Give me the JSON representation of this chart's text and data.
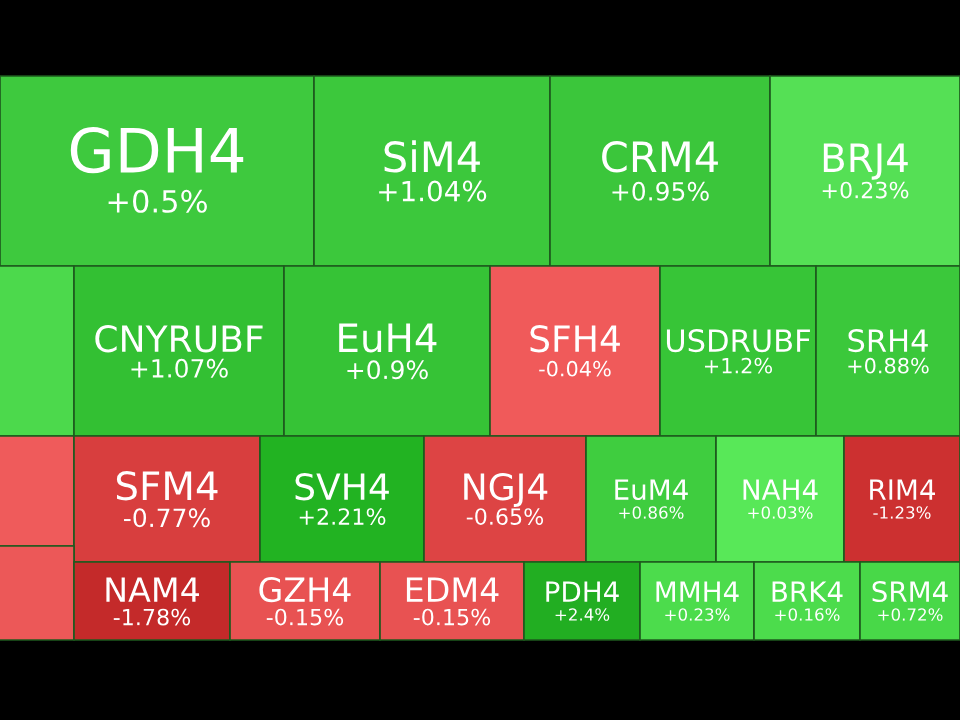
{
  "chart_data": {
    "type": "other",
    "categories": [
      "GDH4",
      "SiM4",
      "CRM4",
      "BRJ4",
      null,
      "CNYRUBF",
      "EuH4",
      "SFH4",
      "USDRUBF",
      "SRH4",
      null,
      "SFM4",
      "SVH4",
      "NGJ4",
      "EuM4",
      "NAH4",
      "RIM4",
      null,
      "NAM4",
      "GZH4",
      "EDM4",
      "PDH4",
      "MMH4",
      "BRK4",
      "SRM4"
    ],
    "values": [
      0.5,
      1.04,
      0.95,
      0.23,
      null,
      1.07,
      0.9,
      -0.04,
      1.2,
      0.88,
      null,
      -0.77,
      2.21,
      -0.65,
      0.86,
      0.03,
      -1.23,
      null,
      -1.78,
      -0.15,
      -0.15,
      2.4,
      0.23,
      0.16,
      0.72
    ],
    "value_labels": [
      "+0.5%",
      "+1.04%",
      "+0.95%",
      "+0.23%",
      null,
      "+1.07%",
      "+0.9%",
      "-0.04%",
      "+1.2%",
      "+0.88%",
      null,
      "-0.77%",
      "+2.21%",
      "-0.65%",
      "+0.86%",
      "+0.03%",
      "-1.23%",
      null,
      "-1.78%",
      "-0.15%",
      "-0.15%",
      "+2.4%",
      "+0.23%",
      "+0.16%",
      "+0.72%"
    ],
    "colors": [
      "#3ec93e",
      "#3cc83c",
      "#3bc63b",
      "#55e055",
      "#4cd94c",
      "#33c033",
      "#36c336",
      "#f05a5a",
      "#37c537",
      "#3bc83b",
      "#ef5b5b",
      "#d83e3e",
      "#22b322",
      "#dd4444",
      "#3fcd3f",
      "#58e858",
      "#cc3030",
      "#ec5858",
      "#c42a2a",
      "#e85252",
      "#e85252",
      "#22ae22",
      "#4cdc4c",
      "#4cdc4c",
      "#48d848"
    ]
  }
}
